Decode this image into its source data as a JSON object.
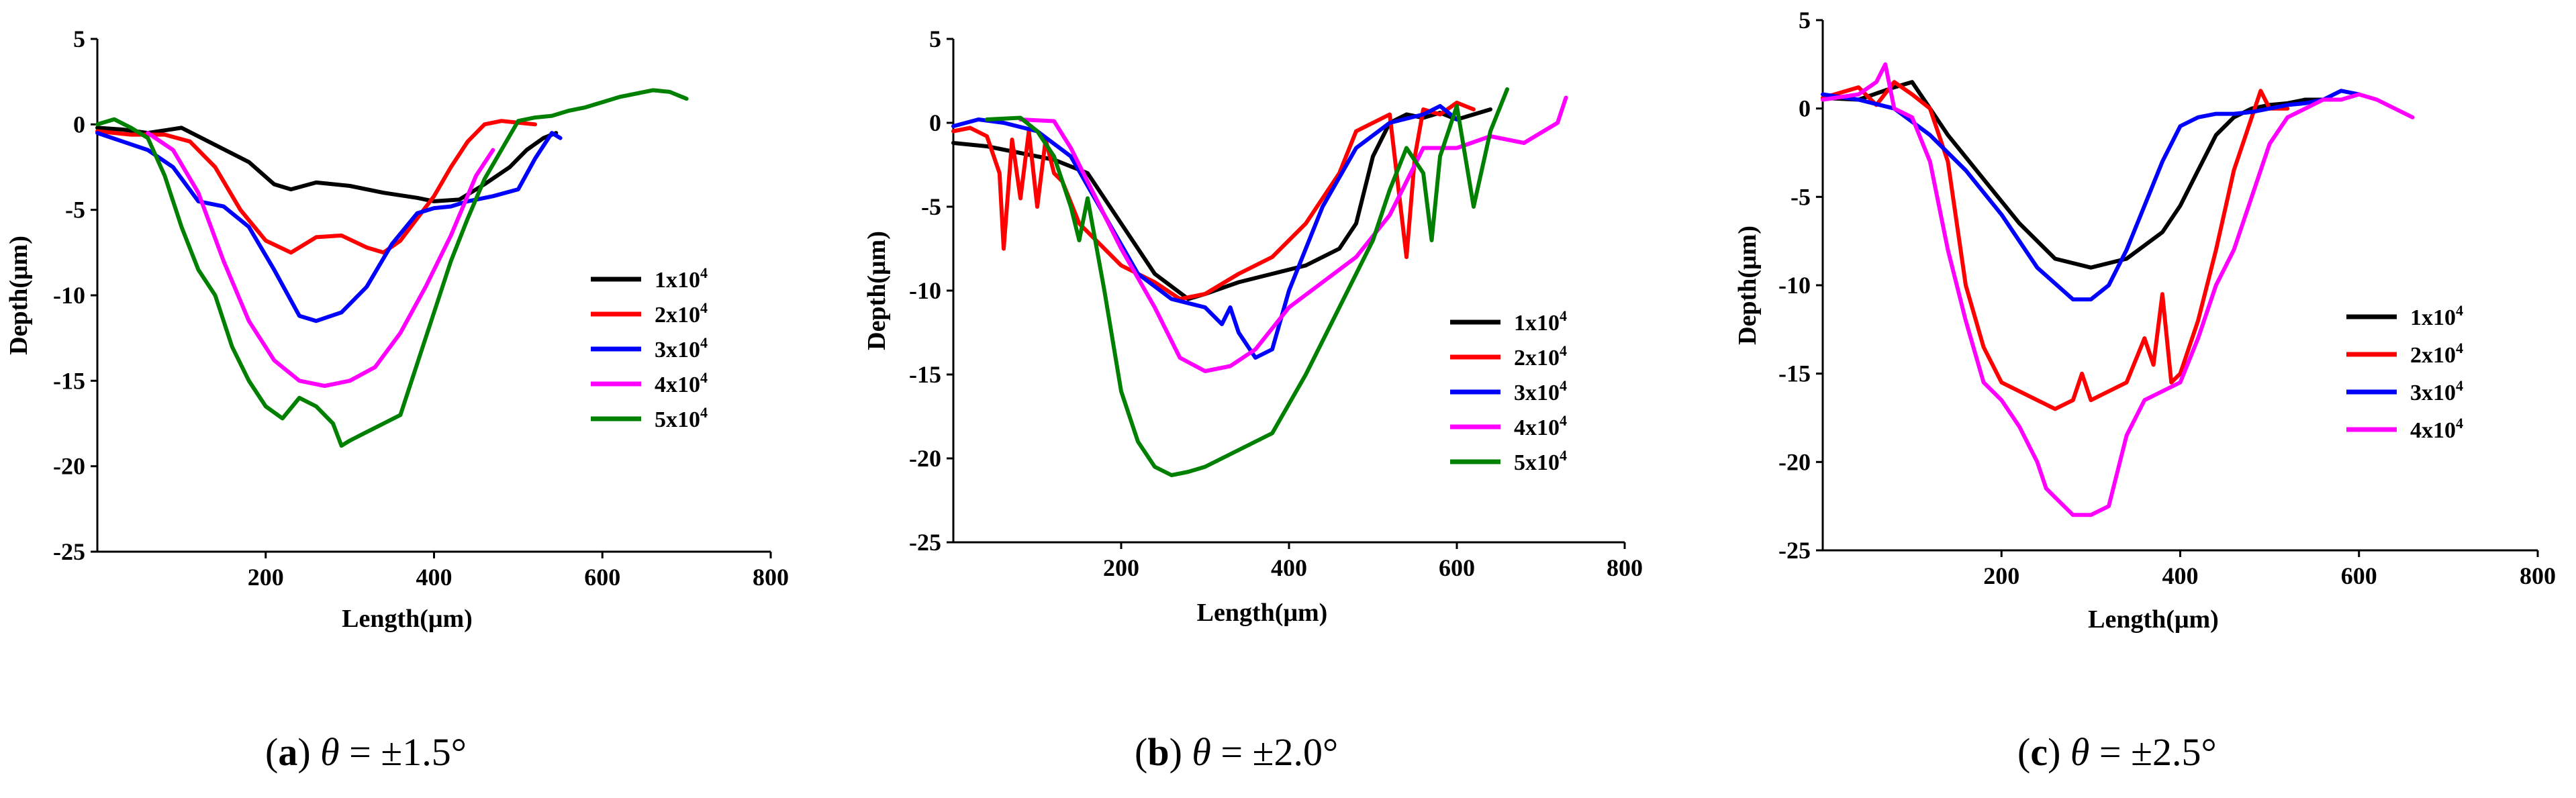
{
  "chart_data": [
    {
      "type": "line",
      "panel_letter": "a",
      "caption_symbol": "θ",
      "caption_value": " = ±1.5°",
      "xlabel": "Length(μm)",
      "ylabel": "Depth(μm)",
      "xlim": [
        0,
        800
      ],
      "ylim": [
        -25,
        5
      ],
      "xticks": [
        200,
        400,
        600,
        800
      ],
      "yticks": [
        5,
        0,
        -5,
        -10,
        -15,
        -20,
        -25
      ],
      "legend_position": "right-bottom",
      "series": [
        {
          "name": "1x10",
          "sup": "4",
          "color": "#000000",
          "x": [
            0,
            30,
            60,
            100,
            140,
            180,
            210,
            230,
            260,
            300,
            340,
            380,
            400,
            430,
            460,
            490,
            510,
            530,
            545
          ],
          "y": [
            -0.2,
            -0.3,
            -0.5,
            -0.2,
            -1.2,
            -2.2,
            -3.5,
            -3.8,
            -3.4,
            -3.6,
            -4.0,
            -4.3,
            -4.5,
            -4.4,
            -3.5,
            -2.5,
            -1.5,
            -0.8,
            -0.5
          ]
        },
        {
          "name": "2x10",
          "sup": "4",
          "color": "#ff0000",
          "x": [
            0,
            40,
            80,
            110,
            140,
            170,
            200,
            230,
            260,
            290,
            320,
            340,
            360,
            380,
            400,
            420,
            440,
            460,
            480,
            500,
            520
          ],
          "y": [
            -0.4,
            -0.6,
            -0.6,
            -1.0,
            -2.5,
            -5.0,
            -6.8,
            -7.5,
            -6.6,
            -6.5,
            -7.2,
            -7.5,
            -6.8,
            -5.5,
            -4.2,
            -2.5,
            -1.0,
            0.0,
            0.2,
            0.1,
            0.0
          ]
        },
        {
          "name": "3x10",
          "sup": "4",
          "color": "#0000ff",
          "x": [
            0,
            30,
            60,
            90,
            120,
            150,
            180,
            210,
            240,
            260,
            290,
            320,
            350,
            380,
            400,
            420,
            440,
            470,
            500,
            520,
            540,
            550
          ],
          "y": [
            -0.5,
            -1.0,
            -1.5,
            -2.5,
            -4.5,
            -4.8,
            -6.0,
            -8.5,
            -11.2,
            -11.5,
            -11.0,
            -9.5,
            -7.0,
            -5.2,
            -4.9,
            -4.8,
            -4.5,
            -4.2,
            -3.8,
            -2.0,
            -0.5,
            -0.8
          ]
        },
        {
          "name": "4x10",
          "sup": "4",
          "color": "#ff00ff",
          "x": [
            60,
            90,
            120,
            150,
            180,
            210,
            240,
            270,
            300,
            330,
            360,
            390,
            420,
            450,
            470
          ],
          "y": [
            -0.5,
            -1.5,
            -4.0,
            -8.0,
            -11.5,
            -13.8,
            -15.0,
            -15.3,
            -15.0,
            -14.2,
            -12.2,
            -9.5,
            -6.5,
            -3.0,
            -1.5
          ]
        },
        {
          "name": "5x10",
          "sup": "4",
          "color": "#008000",
          "x": [
            0,
            20,
            40,
            60,
            80,
            100,
            120,
            140,
            160,
            180,
            200,
            220,
            240,
            260,
            280,
            290,
            300,
            320,
            340,
            360,
            380,
            400,
            420,
            440,
            460,
            480,
            500,
            520,
            540,
            560,
            580,
            600,
            620,
            640,
            660,
            680,
            700
          ],
          "y": [
            0.0,
            0.3,
            -0.2,
            -0.8,
            -3.0,
            -6.0,
            -8.5,
            -10.0,
            -13.0,
            -15.0,
            -16.5,
            -17.2,
            -16.0,
            -16.5,
            -17.5,
            -18.8,
            -18.5,
            -18.0,
            -17.5,
            -17.0,
            -14.0,
            -11.0,
            -8.0,
            -5.5,
            -3.2,
            -1.5,
            0.2,
            0.4,
            0.5,
            0.8,
            1.0,
            1.3,
            1.6,
            1.8,
            2.0,
            1.9,
            1.5
          ]
        }
      ]
    },
    {
      "type": "line",
      "panel_letter": "b",
      "caption_symbol": "θ",
      "caption_value": " = ±2.0°",
      "xlabel": "Length(μm)",
      "ylabel": "Depth(μm)",
      "xlim": [
        0,
        800
      ],
      "ylim": [
        -25,
        5
      ],
      "xticks": [
        200,
        400,
        600,
        800
      ],
      "yticks": [
        5,
        0,
        -5,
        -10,
        -15,
        -20,
        -25
      ],
      "legend_position": "right-bottom",
      "series": [
        {
          "name": "1x10",
          "sup": "4",
          "color": "#000000",
          "x": [
            0,
            40,
            80,
            120,
            160,
            200,
            240,
            280,
            300,
            340,
            380,
            420,
            460,
            480,
            500,
            520,
            540,
            560,
            580,
            600,
            620,
            640
          ],
          "y": [
            -1.2,
            -1.4,
            -1.8,
            -2.2,
            -3.0,
            -6.0,
            -9.0,
            -10.5,
            -10.2,
            -9.5,
            -9.0,
            -8.5,
            -7.5,
            -6.0,
            -2.0,
            0.0,
            0.5,
            0.3,
            0.6,
            0.2,
            0.5,
            0.8
          ]
        },
        {
          "name": "2x10",
          "sup": "4",
          "color": "#ff0000",
          "x": [
            0,
            20,
            40,
            55,
            60,
            70,
            80,
            90,
            100,
            110,
            120,
            130,
            150,
            170,
            200,
            240,
            270,
            300,
            340,
            380,
            420,
            460,
            480,
            500,
            520,
            540,
            550,
            560,
            580,
            600,
            620
          ],
          "y": [
            -0.5,
            -0.3,
            -0.8,
            -3.0,
            -7.5,
            -1.0,
            -4.5,
            -0.5,
            -5.0,
            -1.0,
            -3.0,
            -3.5,
            -6.0,
            -7.0,
            -8.5,
            -9.5,
            -10.5,
            -10.2,
            -9.0,
            -8.0,
            -6.0,
            -3.0,
            -0.5,
            0.0,
            0.5,
            -8.0,
            -2.0,
            0.8,
            0.5,
            1.2,
            0.8
          ]
        },
        {
          "name": "3x10",
          "sup": "4",
          "color": "#0000ff",
          "x": [
            0,
            30,
            60,
            100,
            140,
            180,
            220,
            260,
            300,
            320,
            330,
            340,
            360,
            380,
            400,
            440,
            480,
            520,
            560,
            580,
            600
          ],
          "y": [
            -0.2,
            0.2,
            0.0,
            -0.5,
            -2.0,
            -5.5,
            -9.0,
            -10.5,
            -11.0,
            -12.0,
            -11.0,
            -12.5,
            -14.0,
            -13.5,
            -10.0,
            -5.0,
            -1.5,
            0.0,
            0.5,
            1.0,
            0.2
          ]
        },
        {
          "name": "4x10",
          "sup": "4",
          "color": "#ff00ff",
          "x": [
            80,
            120,
            140,
            160,
            200,
            240,
            270,
            300,
            330,
            360,
            400,
            440,
            480,
            520,
            560,
            600,
            640,
            680,
            720,
            730
          ],
          "y": [
            0.2,
            0.1,
            -1.5,
            -3.5,
            -7.5,
            -11.0,
            -14.0,
            -14.8,
            -14.5,
            -13.5,
            -11.0,
            -9.5,
            -8.0,
            -5.5,
            -1.5,
            -1.5,
            -0.8,
            -1.2,
            0.0,
            1.5
          ]
        },
        {
          "name": "5x10",
          "sup": "4",
          "color": "#008000",
          "x": [
            40,
            80,
            100,
            120,
            140,
            150,
            160,
            180,
            200,
            220,
            240,
            260,
            280,
            300,
            340,
            380,
            420,
            460,
            500,
            520,
            540,
            560,
            570,
            580,
            600,
            620,
            640,
            660
          ],
          "y": [
            0.2,
            0.3,
            -0.5,
            -2.0,
            -5.0,
            -7.0,
            -4.5,
            -10.0,
            -16.0,
            -19.0,
            -20.5,
            -21.0,
            -20.8,
            -20.5,
            -19.5,
            -18.5,
            -15.0,
            -11.0,
            -7.0,
            -4.0,
            -1.5,
            -3.0,
            -7.0,
            -2.0,
            1.0,
            -5.0,
            -0.5,
            2.0
          ]
        }
      ]
    },
    {
      "type": "line",
      "panel_letter": "c",
      "caption_symbol": "θ",
      "caption_value": " = ±2.5°",
      "xlabel": "Length(μm)",
      "ylabel": "Depth(μm)",
      "xlim": [
        0,
        800
      ],
      "ylim": [
        -25,
        5
      ],
      "xticks": [
        200,
        400,
        600,
        800
      ],
      "yticks": [
        5,
        0,
        -5,
        -10,
        -15,
        -20,
        -25
      ],
      "legend_position": "right-bottom",
      "series": [
        {
          "name": "1x10",
          "sup": "4",
          "color": "#000000",
          "x": [
            0,
            40,
            80,
            100,
            120,
            140,
            180,
            220,
            260,
            300,
            340,
            380,
            400,
            420,
            440,
            460,
            480,
            500,
            520,
            540,
            560
          ],
          "y": [
            0.6,
            0.5,
            1.2,
            1.5,
            0.0,
            -1.5,
            -4.0,
            -6.5,
            -8.5,
            -9.0,
            -8.5,
            -7.0,
            -5.5,
            -3.5,
            -1.5,
            -0.5,
            0.0,
            0.2,
            0.3,
            0.5,
            0.5
          ]
        },
        {
          "name": "2x10",
          "sup": "4",
          "color": "#ff0000",
          "x": [
            0,
            40,
            60,
            80,
            100,
            120,
            140,
            160,
            180,
            200,
            240,
            260,
            280,
            290,
            300,
            320,
            340,
            360,
            370,
            380,
            390,
            400,
            420,
            440,
            460,
            480,
            490,
            500,
            520
          ],
          "y": [
            0.6,
            1.2,
            0.2,
            1.5,
            0.8,
            0.0,
            -3.0,
            -10.0,
            -13.5,
            -15.5,
            -16.5,
            -17.0,
            -16.5,
            -15.0,
            -16.5,
            -16.0,
            -15.5,
            -13.0,
            -14.5,
            -10.5,
            -15.5,
            -15.0,
            -12.0,
            -8.0,
            -3.5,
            -0.5,
            1.0,
            0.0,
            0.0
          ]
        },
        {
          "name": "3x10",
          "sup": "4",
          "color": "#0000ff",
          "x": [
            0,
            40,
            80,
            120,
            160,
            200,
            240,
            280,
            300,
            320,
            340,
            360,
            380,
            400,
            420,
            440,
            460,
            480,
            500,
            520,
            540,
            560,
            580,
            600
          ],
          "y": [
            0.8,
            0.5,
            0.0,
            -1.5,
            -3.5,
            -6.0,
            -9.0,
            -10.8,
            -10.8,
            -10.0,
            -8.0,
            -5.5,
            -3.0,
            -1.0,
            -0.5,
            -0.3,
            -0.3,
            -0.2,
            0.0,
            0.2,
            0.3,
            0.5,
            1.0,
            0.8
          ]
        },
        {
          "name": "4x10",
          "sup": "4",
          "color": "#ff00ff",
          "x": [
            0,
            40,
            60,
            70,
            80,
            100,
            120,
            140,
            160,
            180,
            200,
            220,
            240,
            250,
            260,
            280,
            300,
            320,
            340,
            360,
            380,
            400,
            420,
            440,
            460,
            480,
            500,
            520,
            540,
            560,
            580,
            600,
            620,
            640,
            660
          ],
          "y": [
            0.5,
            0.8,
            1.5,
            2.5,
            0.0,
            -0.5,
            -3.0,
            -8.0,
            -12.0,
            -15.5,
            -16.5,
            -18.0,
            -20.0,
            -21.5,
            -22.0,
            -23.0,
            -23.0,
            -22.5,
            -18.5,
            -16.5,
            -16.0,
            -15.5,
            -13.0,
            -10.0,
            -8.0,
            -5.0,
            -2.0,
            -0.5,
            0.0,
            0.5,
            0.5,
            0.8,
            0.5,
            0.0,
            -0.5
          ]
        }
      ]
    }
  ]
}
